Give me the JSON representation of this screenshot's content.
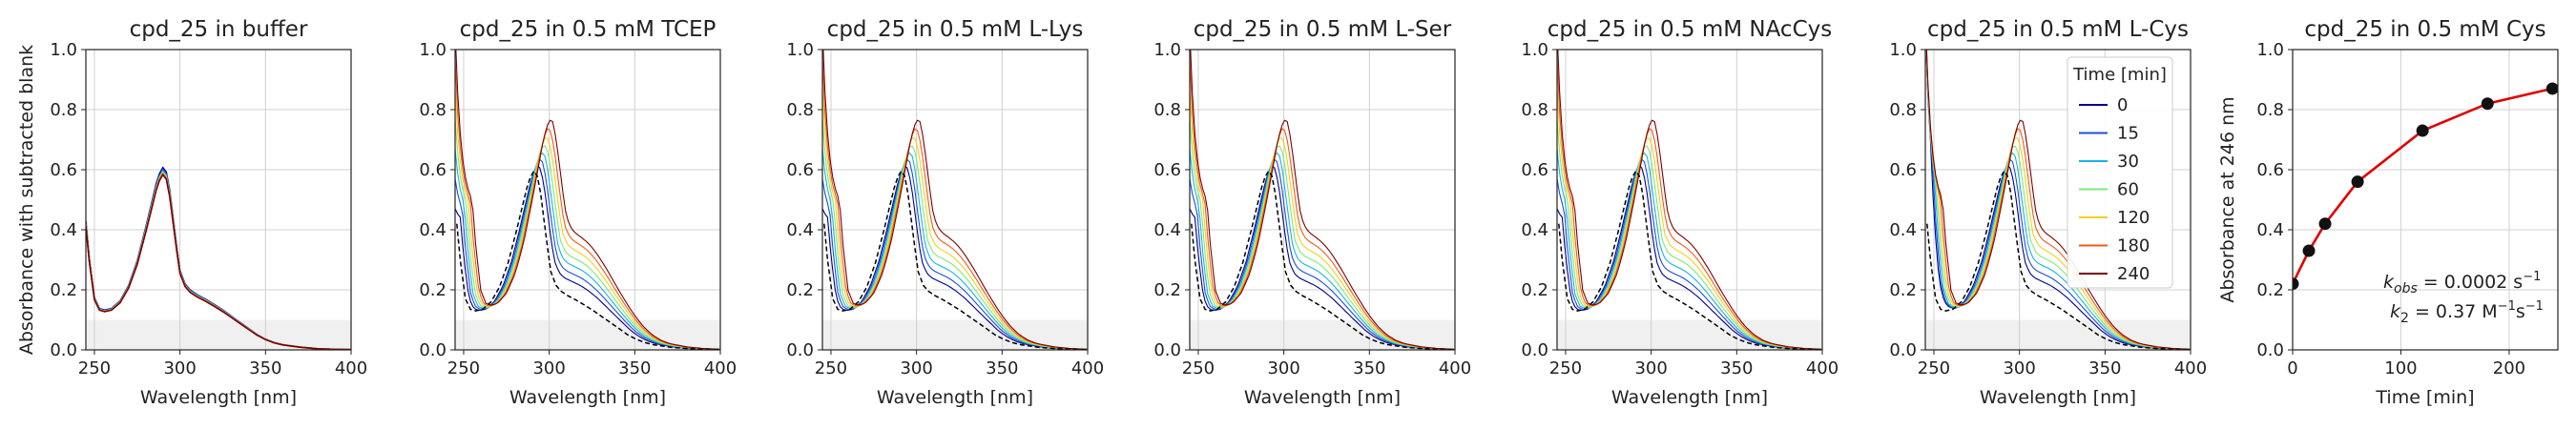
{
  "chart_data": [
    {
      "type": "line",
      "title": "cpd_25 in buffer",
      "xlabel": "Wavelength [nm]",
      "ylabel": "Absorbance with subtracted blank",
      "xlim": [
        245,
        400
      ],
      "ylim": [
        0,
        1.0
      ],
      "xticks": [
        250,
        300,
        350,
        400
      ],
      "yticks": [
        0.0,
        0.2,
        0.4,
        0.6,
        0.8,
        1.0
      ],
      "grid": true,
      "shaded_band": [
        0,
        0.1
      ],
      "profile": {
        "x": [
          245,
          247,
          250,
          253,
          256,
          260,
          265,
          270,
          275,
          280,
          283,
          286,
          288,
          290,
          292,
          294,
          296,
          298,
          300,
          303,
          306,
          310,
          315,
          320,
          325,
          330,
          335,
          340,
          345,
          350,
          355,
          360,
          370,
          380,
          390,
          400
        ],
        "y": [
          0.42,
          0.3,
          0.17,
          0.135,
          0.13,
          0.135,
          0.16,
          0.21,
          0.29,
          0.4,
          0.47,
          0.54,
          0.575,
          0.595,
          0.58,
          0.52,
          0.43,
          0.34,
          0.26,
          0.215,
          0.195,
          0.18,
          0.165,
          0.148,
          0.13,
          0.11,
          0.09,
          0.07,
          0.05,
          0.035,
          0.024,
          0.017,
          0.009,
          0.004,
          0.002,
          0.001
        ]
      },
      "series": [
        {
          "name": "0",
          "color": "#00008b",
          "scale": 1.02
        },
        {
          "name": "15",
          "color": "#1f4fd8",
          "scale": 1.01
        },
        {
          "name": "30",
          "color": "#19b3e6",
          "scale": 1.0
        },
        {
          "name": "60",
          "color": "#7de87a",
          "scale": 0.995
        },
        {
          "name": "120",
          "color": "#f0d21a",
          "scale": 0.99
        },
        {
          "name": "180",
          "color": "#f05a1a",
          "scale": 0.985
        },
        {
          "name": "240",
          "color": "#7a0000",
          "scale": 0.98
        }
      ]
    },
    {
      "type": "line",
      "title": "cpd_25 in 0.5 mM TCEP",
      "xlabel": "Wavelength [nm]",
      "ylabel": "",
      "xlim": [
        245,
        400
      ],
      "ylim": [
        0,
        1.0
      ],
      "xticks": [
        250,
        300,
        350,
        400
      ],
      "yticks": [
        0.0,
        0.2,
        0.4,
        0.6,
        0.8,
        1.0
      ],
      "grid": true,
      "shaded_band": [
        0,
        0.1
      ],
      "reagent": "tcep"
    },
    {
      "type": "line",
      "title": "cpd_25 in 0.5 mM L-Lys",
      "xlabel": "Wavelength [nm]",
      "ylabel": "",
      "xlim": [
        245,
        400
      ],
      "ylim": [
        0,
        1.0
      ],
      "xticks": [
        250,
        300,
        350,
        400
      ],
      "yticks": [
        0.0,
        0.2,
        0.4,
        0.6,
        0.8,
        1.0
      ],
      "grid": true,
      "shaded_band": [
        0,
        0.1
      ],
      "reagent": "generic"
    },
    {
      "type": "line",
      "title": "cpd_25 in 0.5 mM L-Ser",
      "xlabel": "Wavelength [nm]",
      "ylabel": "",
      "xlim": [
        245,
        400
      ],
      "ylim": [
        0,
        1.0
      ],
      "xticks": [
        250,
        300,
        350,
        400
      ],
      "yticks": [
        0.0,
        0.2,
        0.4,
        0.6,
        0.8,
        1.0
      ],
      "grid": true,
      "shaded_band": [
        0,
        0.1
      ],
      "reagent": "generic"
    },
    {
      "type": "line",
      "title": "cpd_25 in 0.5 mM NAcCys",
      "xlabel": "Wavelength [nm]",
      "ylabel": "",
      "xlim": [
        245,
        400
      ],
      "ylim": [
        0,
        1.0
      ],
      "xticks": [
        250,
        300,
        350,
        400
      ],
      "yticks": [
        0.0,
        0.2,
        0.4,
        0.6,
        0.8,
        1.0
      ],
      "grid": true,
      "shaded_band": [
        0,
        0.1
      ],
      "reagent": "generic"
    },
    {
      "type": "line",
      "title": "cpd_25 in 0.5 mM L-Cys",
      "xlabel": "Wavelength [nm]",
      "ylabel": "",
      "xlim": [
        245,
        400
      ],
      "ylim": [
        0,
        1.0
      ],
      "xticks": [
        250,
        300,
        350,
        400
      ],
      "yticks": [
        0.0,
        0.2,
        0.4,
        0.6,
        0.8,
        1.0
      ],
      "grid": true,
      "shaded_band": [
        0,
        0.1
      ],
      "reagent": "cys",
      "legend": {
        "title": "Time [min]",
        "placement": "top-right",
        "entries": [
          {
            "label": "0",
            "color": "#00008b"
          },
          {
            "label": "15",
            "color": "#1f4fd8"
          },
          {
            "label": "30",
            "color": "#19b3e6"
          },
          {
            "label": "60",
            "color": "#7de87a"
          },
          {
            "label": "120",
            "color": "#f0d21a"
          },
          {
            "label": "180",
            "color": "#f05a1a"
          },
          {
            "label": "240",
            "color": "#7a0000"
          }
        ]
      }
    },
    {
      "type": "scatter",
      "title": "cpd_25 in 0.5 mM Cys",
      "xlabel": "Time [min]",
      "ylabel": "Absorbance at 246 nm",
      "xlim": [
        0,
        245
      ],
      "ylim": [
        0,
        1.0
      ],
      "xticks": [
        0,
        100,
        200
      ],
      "yticks": [
        0.0,
        0.2,
        0.4,
        0.6,
        0.8,
        1.0
      ],
      "grid": true,
      "points": {
        "x": [
          0,
          15,
          30,
          60,
          120,
          180,
          240
        ],
        "y": [
          0.22,
          0.33,
          0.42,
          0.56,
          0.73,
          0.82,
          0.87
        ]
      },
      "fit_color": "#e00000",
      "annotations": [
        "k_obs = 0.0002 s^-1",
        "k_2 = 0.37 M^-1 s^-1"
      ]
    }
  ],
  "kinetics_values": [
    "= 0.0002 s",
    "= 0.37 M",
    "s"
  ],
  "tick_labels": {
    "spectra_x": [
      "250",
      "300",
      "350",
      "400"
    ],
    "y": [
      "0.0",
      "0.2",
      "0.4",
      "0.6",
      "0.8",
      "1.0"
    ],
    "time_x": [
      "0",
      "100",
      "200"
    ]
  },
  "colors": {
    "grid": "#d0d0d0",
    "band": "#f0f0f0",
    "dashed_reference": "#000000"
  }
}
